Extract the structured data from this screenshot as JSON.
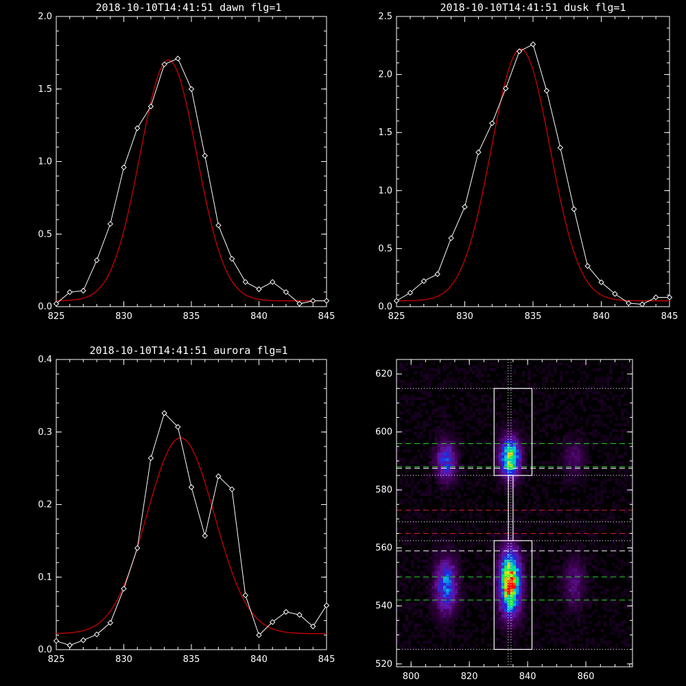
{
  "chart_data": [
    {
      "id": "dawn",
      "type": "line",
      "title": "2018-10-10T14:41:51 dawn flg=1",
      "xlim": [
        825,
        845
      ],
      "ylim": [
        0,
        2.0
      ],
      "xticks": [
        825,
        830,
        835,
        840,
        845
      ],
      "yticks": [
        0.0,
        0.5,
        1.0,
        1.5,
        2.0
      ],
      "ytick_labels": [
        "0.0",
        "0.5",
        "1.0",
        "1.5",
        "2.0"
      ],
      "data": {
        "x": [
          825,
          826,
          827,
          828,
          829,
          830,
          831,
          832,
          833,
          834,
          835,
          836,
          837,
          838,
          839,
          840,
          841,
          842,
          843,
          844,
          845
        ],
        "y": [
          0.02,
          0.1,
          0.11,
          0.32,
          0.57,
          0.96,
          1.23,
          1.38,
          1.67,
          1.71,
          1.5,
          1.04,
          0.56,
          0.33,
          0.17,
          0.12,
          0.17,
          0.1,
          0.02,
          0.04,
          0.04
        ]
      },
      "fit": {
        "amplitude": 1.66,
        "center": 833.3,
        "sigma": 2.1,
        "offset": 0.04
      },
      "colors": {
        "data": "#ffffff",
        "fit": "#dd0000"
      }
    },
    {
      "id": "dusk",
      "type": "line",
      "title": "2018-10-10T14:41:51 dusk flg=1",
      "xlim": [
        825,
        845
      ],
      "ylim": [
        0,
        2.5
      ],
      "xticks": [
        825,
        830,
        835,
        840,
        845
      ],
      "yticks": [
        0.0,
        0.5,
        1.0,
        1.5,
        2.0,
        2.5
      ],
      "ytick_labels": [
        "0.0",
        "0.5",
        "1.0",
        "1.5",
        "2.0",
        "2.5"
      ],
      "data": {
        "x": [
          825,
          826,
          827,
          828,
          829,
          830,
          831,
          832,
          833,
          834,
          835,
          836,
          837,
          838,
          839,
          840,
          841,
          842,
          843,
          844,
          845
        ],
        "y": [
          0.05,
          0.12,
          0.22,
          0.28,
          0.59,
          0.86,
          1.33,
          1.58,
          1.88,
          2.2,
          2.26,
          1.86,
          1.37,
          0.84,
          0.35,
          0.21,
          0.11,
          0.03,
          0.02,
          0.08,
          0.08
        ]
      },
      "fit": {
        "amplitude": 2.17,
        "center": 834.1,
        "sigma": 2.15,
        "offset": 0.05
      },
      "colors": {
        "data": "#ffffff",
        "fit": "#dd0000"
      }
    },
    {
      "id": "aurora",
      "type": "line",
      "title": "2018-10-10T14:41:51 aurora flg=1",
      "xlim": [
        825,
        845
      ],
      "ylim": [
        0,
        0.4
      ],
      "xticks": [
        825,
        830,
        835,
        840,
        845
      ],
      "yticks": [
        0.0,
        0.1,
        0.2,
        0.3,
        0.4
      ],
      "ytick_labels": [
        "0.0",
        "0.1",
        "0.2",
        "0.3",
        "0.4"
      ],
      "data": {
        "x": [
          825,
          826,
          827,
          828,
          829,
          830,
          831,
          832,
          833,
          834,
          835,
          836,
          837,
          838,
          839,
          840,
          841,
          842,
          843,
          844,
          845
        ],
        "y": [
          0.012,
          0.006,
          0.013,
          0.021,
          0.037,
          0.084,
          0.14,
          0.264,
          0.326,
          0.307,
          0.224,
          0.157,
          0.239,
          0.221,
          0.075,
          0.02,
          0.038,
          0.052,
          0.048,
          0.032,
          0.061
        ]
      },
      "fit": {
        "amplitude": 0.27,
        "center": 834.2,
        "sigma": 2.5,
        "offset": 0.022
      },
      "colors": {
        "data": "#ffffff",
        "fit": "#dd0000"
      }
    },
    {
      "id": "image",
      "type": "heatmap",
      "xlim": [
        795,
        876
      ],
      "ylim": [
        519,
        625
      ],
      "xticks": [
        800,
        820,
        840,
        860
      ],
      "yticks": [
        520,
        540,
        560,
        580,
        600,
        620
      ],
      "blobs": [
        {
          "cx": 834,
          "cy": 548,
          "sx": 2.3,
          "sy": 7,
          "amp": 1.0
        },
        {
          "cx": 834,
          "cy": 591,
          "sx": 2.2,
          "sy": 4.5,
          "amp": 0.75
        },
        {
          "cx": 812,
          "cy": 547,
          "sx": 2.5,
          "sy": 6,
          "amp": 0.45
        },
        {
          "cx": 812,
          "cy": 590,
          "sx": 2.3,
          "sy": 4.5,
          "amp": 0.38
        },
        {
          "cx": 856,
          "cy": 548,
          "sx": 2.5,
          "sy": 6,
          "amp": 0.16
        },
        {
          "cx": 856,
          "cy": 591,
          "sx": 2.5,
          "sy": 4.5,
          "amp": 0.13
        }
      ],
      "boxes": [
        {
          "x0": 828.5,
          "x1": 841.5,
          "y0": 585,
          "y1": 615
        },
        {
          "x0": 828.5,
          "x1": 841.5,
          "y0": 525,
          "y1": 562.5
        },
        {
          "x0": 833.4,
          "x1": 835.0,
          "y0": 562.5,
          "y1": 585
        }
      ],
      "vlines_dotted": [
        833.3,
        834.3
      ],
      "hlines": [
        {
          "y": 615,
          "color": "#ffffff",
          "style": "dotted"
        },
        {
          "y": 585,
          "color": "#ffffff",
          "style": "dotted"
        },
        {
          "y": 562.5,
          "color": "#ffffff",
          "style": "dotted"
        },
        {
          "y": 525,
          "color": "#ffffff",
          "style": "dotted"
        },
        {
          "y": 596,
          "color": "#22dd22",
          "style": "dashed"
        },
        {
          "y": 588,
          "color": "#22dd22",
          "style": "dashed"
        },
        {
          "y": 587.5,
          "color": "#ffffff",
          "style": "dashed"
        },
        {
          "y": 573,
          "color": "#dd2222",
          "style": "dashed"
        },
        {
          "y": 569,
          "color": "#ffffff",
          "style": "dotted"
        },
        {
          "y": 565,
          "color": "#dd2222",
          "style": "dashed"
        },
        {
          "y": 559,
          "color": "#ffffff",
          "style": "dashed"
        },
        {
          "y": 550,
          "color": "#22dd22",
          "style": "dashed"
        },
        {
          "y": 542,
          "color": "#22dd22",
          "style": "dashed"
        }
      ]
    }
  ]
}
